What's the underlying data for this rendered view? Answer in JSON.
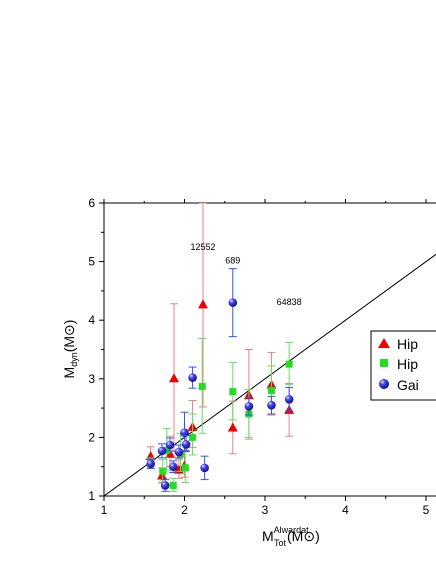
{
  "chart_data": {
    "type": "scatter",
    "xlim": [
      1,
      5.2
    ],
    "ylim": [
      1,
      6
    ],
    "x_ticks": [
      "1",
      "2",
      "3",
      "4",
      "5"
    ],
    "y_ticks": [
      "1",
      "2",
      "3",
      "4",
      "5",
      "6"
    ],
    "xlabel": {
      "main": "M",
      "sub": "Tot",
      "sup": "Alwardat",
      "unit": "(M⊙)"
    },
    "ylabel": {
      "main": "M",
      "sub": "dyn",
      "unit": "(M⊙)"
    },
    "reference_line": {
      "label": "1:1",
      "from": [
        1,
        1
      ],
      "to": [
        5.2,
        5.2
      ],
      "color": "#000000"
    },
    "annotations": [
      {
        "text": "12552",
        "x": 2.23,
        "y": 5.2
      },
      {
        "text": "689",
        "x": 2.6,
        "y": 4.97
      },
      {
        "text": "64838",
        "x": 3.3,
        "y": 4.26
      }
    ],
    "legend_position": "right",
    "series": [
      {
        "name": "Hip",
        "marker": "triangle",
        "color": "#ee0000",
        "error_color": "#f08080",
        "points": [
          {
            "x": 1.58,
            "y": 1.68,
            "yerr": [
              0.12,
              0.16
            ]
          },
          {
            "x": 1.72,
            "y": 1.35,
            "yerr": [
              0.13,
              0.13
            ]
          },
          {
            "x": 1.82,
            "y": 1.72,
            "yerr": [
              0.22,
              0.3
            ]
          },
          {
            "x": 1.87,
            "y": 3.01,
            "yerr": [
              1.25,
              1.27
            ]
          },
          {
            "x": 1.93,
            "y": 1.45,
            "yerr": [
              0.15,
              0.18
            ]
          },
          {
            "x": 2.0,
            "y": 1.52,
            "yerr": [
              0.2,
              0.25
            ]
          },
          {
            "x": 2.1,
            "y": 2.18,
            "yerr": [
              0.35,
              0.45
            ]
          },
          {
            "x": 2.23,
            "y": 4.27,
            "yerr": [
              1.75,
              1.73
            ]
          },
          {
            "x": 2.6,
            "y": 2.17,
            "yerr": [
              0.45,
              0.45
            ]
          },
          {
            "x": 2.8,
            "y": 2.72,
            "yerr": [
              0.75,
              0.78
            ]
          },
          {
            "x": 3.08,
            "y": 2.9,
            "yerr": [
              0.52,
              0.55
            ]
          },
          {
            "x": 3.3,
            "y": 2.47,
            "yerr": [
              0.45,
              0.45
            ]
          }
        ]
      },
      {
        "name": "Hip",
        "marker": "square",
        "color": "#22dd22",
        "error_color": "#66dd66",
        "points": [
          {
            "x": 1.58,
            "y": 1.57,
            "yerr": [
              0.08,
              0.08
            ]
          },
          {
            "x": 1.73,
            "y": 1.42,
            "yerr": [
              0.18,
              0.2
            ]
          },
          {
            "x": 1.78,
            "y": 1.78,
            "yerr": [
              0.35,
              0.37
            ]
          },
          {
            "x": 1.86,
            "y": 1.18,
            "yerr": [
              0.1,
              0.12
            ]
          },
          {
            "x": 1.95,
            "y": 1.72,
            "yerr": [
              0.3,
              0.35
            ]
          },
          {
            "x": 2.01,
            "y": 1.48,
            "yerr": [
              0.25,
              0.3
            ]
          },
          {
            "x": 2.1,
            "y": 2.0,
            "yerr": [
              0.3,
              0.4
            ]
          },
          {
            "x": 2.22,
            "y": 2.87,
            "yerr": [
              0.8,
              0.82
            ]
          },
          {
            "x": 2.6,
            "y": 2.78,
            "yerr": [
              0.48,
              0.5
            ]
          },
          {
            "x": 2.8,
            "y": 2.4,
            "yerr": [
              0.4,
              0.42
            ]
          },
          {
            "x": 3.08,
            "y": 2.8,
            "yerr": [
              0.4,
              0.42
            ]
          },
          {
            "x": 3.3,
            "y": 3.25,
            "yerr": [
              0.35,
              0.37
            ]
          }
        ]
      },
      {
        "name": "Gai",
        "marker": "sphere",
        "color": "#2222dd",
        "error_color": "#3355ee",
        "points": [
          {
            "x": 1.58,
            "y": 1.55,
            "yerr": [
              0.08,
              0.08
            ]
          },
          {
            "x": 1.72,
            "y": 1.77,
            "yerr": [
              0.12,
              0.12
            ]
          },
          {
            "x": 1.76,
            "y": 1.18,
            "yerr": [
              0.1,
              0.1
            ]
          },
          {
            "x": 1.82,
            "y": 1.87,
            "yerr": [
              0.1,
              0.12
            ]
          },
          {
            "x": 1.86,
            "y": 1.5,
            "yerr": [
              0.1,
              0.1
            ]
          },
          {
            "x": 1.93,
            "y": 1.75,
            "yerr": [
              0.1,
              0.12
            ]
          },
          {
            "x": 2.0,
            "y": 2.08,
            "yerr": [
              0.3,
              0.35
            ]
          },
          {
            "x": 2.02,
            "y": 1.88,
            "yerr": [
              0.12,
              0.15
            ]
          },
          {
            "x": 2.1,
            "y": 3.02,
            "yerr": [
              0.18,
              0.18
            ]
          },
          {
            "x": 2.25,
            "y": 1.48,
            "yerr": [
              0.2,
              0.2
            ]
          },
          {
            "x": 2.6,
            "y": 4.3,
            "yerr": [
              0.58,
              0.58
            ]
          },
          {
            "x": 2.8,
            "y": 2.53,
            "yerr": [
              0.15,
              0.15
            ]
          },
          {
            "x": 3.08,
            "y": 2.55,
            "yerr": [
              0.15,
              0.15
            ]
          },
          {
            "x": 3.3,
            "y": 2.65,
            "yerr": [
              0.2,
              0.2
            ]
          }
        ]
      }
    ]
  }
}
